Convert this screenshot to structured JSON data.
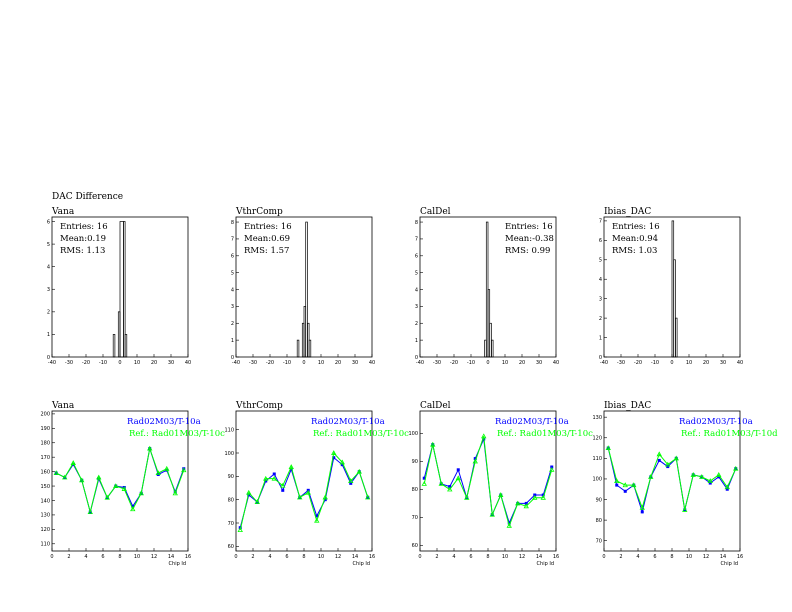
{
  "page_title": "DAC Difference",
  "colors": {
    "blue": "#0000ff",
    "green": "#00ff00",
    "black": "#000000"
  },
  "chart_data": [
    {
      "type": "histogram",
      "title": "Vana",
      "xlim": [
        -40,
        40
      ],
      "ylim": [
        0,
        6.2
      ],
      "x_ticks": [
        -40,
        -30,
        -20,
        -10,
        0,
        10,
        20,
        30,
        40
      ],
      "y_ticks": [
        0,
        1,
        2,
        3,
        4,
        5,
        6
      ],
      "stats": {
        "entries": "Entries:  16",
        "mean": "Mean:0.19",
        "rms": "RMS: 1.13"
      },
      "bins": [
        [
          -4,
          -3,
          1
        ],
        [
          -1,
          0,
          2
        ],
        [
          0,
          2,
          6
        ],
        [
          2,
          3,
          6
        ],
        [
          3,
          4,
          1
        ]
      ]
    },
    {
      "type": "histogram",
      "title": "VthrComp",
      "xlim": [
        -40,
        40
      ],
      "ylim": [
        0,
        8.3
      ],
      "x_ticks": [
        -40,
        -30,
        -20,
        -10,
        0,
        10,
        20,
        30,
        40
      ],
      "y_ticks": [
        0,
        1,
        2,
        3,
        4,
        5,
        6,
        7,
        8
      ],
      "stats": {
        "entries": "Entries:  16",
        "mean": "Mean:0.69",
        "rms": "RMS: 1.57"
      },
      "bins": [
        [
          -4,
          -3,
          1
        ],
        [
          -1,
          0,
          2
        ],
        [
          0,
          1,
          3
        ],
        [
          1,
          2,
          8
        ],
        [
          2,
          3,
          2
        ],
        [
          3,
          4,
          1
        ]
      ]
    },
    {
      "type": "histogram",
      "title": "CalDel",
      "xlim": [
        -40,
        40
      ],
      "ylim": [
        0,
        8.3
      ],
      "x_ticks": [
        -40,
        -30,
        -20,
        -10,
        0,
        10,
        20,
        30,
        40
      ],
      "y_ticks": [
        0,
        1,
        2,
        3,
        4,
        5,
        6,
        7,
        8
      ],
      "stats": {
        "entries": "Entries:  16",
        "mean": "Mean:-0.38",
        "rms": "RMS: 0.99"
      },
      "bins": [
        [
          -2,
          -1,
          1
        ],
        [
          -1,
          0,
          8
        ],
        [
          0,
          1,
          4
        ],
        [
          1,
          2,
          2
        ],
        [
          2,
          3,
          1
        ]
      ]
    },
    {
      "type": "histogram",
      "title": "Ibias_DAC",
      "xlim": [
        -40,
        40
      ],
      "ylim": [
        0,
        7.2
      ],
      "x_ticks": [
        -40,
        -30,
        -20,
        -10,
        0,
        10,
        20,
        30,
        40
      ],
      "y_ticks": [
        0,
        1,
        2,
        3,
        4,
        5,
        6,
        7
      ],
      "stats": {
        "entries": "Entries:  16",
        "mean": "Mean:0.94",
        "rms": "RMS: 1.03"
      },
      "bins": [
        [
          0,
          1,
          7
        ],
        [
          1,
          2,
          5
        ],
        [
          2,
          3,
          2
        ]
      ]
    },
    {
      "type": "line",
      "title": "Vana",
      "xlabel": "Chip Id",
      "xlim": [
        0,
        16
      ],
      "ylim": [
        105,
        202
      ],
      "x_ticks": [
        0,
        2,
        4,
        6,
        8,
        10,
        12,
        14,
        16
      ],
      "y_ticks": [
        110,
        120,
        130,
        140,
        150,
        160,
        170,
        180,
        190,
        200
      ],
      "x": [
        0,
        1,
        2,
        3,
        4,
        5,
        6,
        7,
        8,
        9,
        10,
        11,
        12,
        13,
        14,
        15
      ],
      "series": [
        {
          "name": "Rad02M03/T-10a",
          "color": "#0000ff",
          "values": [
            159,
            156,
            165,
            154,
            132,
            155,
            142,
            150,
            149,
            136,
            145,
            176,
            158,
            161,
            146,
            162
          ]
        },
        {
          "name": "Ref.: Rad01M03/T-10c",
          "color": "#00ff00",
          "values": [
            159,
            156,
            166,
            154,
            132,
            156,
            142,
            150,
            148,
            134,
            145,
            176,
            159,
            162,
            145,
            161
          ]
        }
      ]
    },
    {
      "type": "line",
      "title": "VthrComp",
      "xlabel": "Chip Id",
      "xlim": [
        0,
        16
      ],
      "ylim": [
        58,
        118
      ],
      "x_ticks": [
        0,
        2,
        4,
        6,
        8,
        10,
        12,
        14,
        16
      ],
      "y_ticks": [
        60,
        70,
        80,
        90,
        100,
        110
      ],
      "x": [
        0,
        1,
        2,
        3,
        4,
        5,
        6,
        7,
        8,
        9,
        10,
        11,
        12,
        13,
        14,
        15
      ],
      "series": [
        {
          "name": "Rad02M03/T-10a",
          "color": "#0000ff",
          "values": [
            68,
            82,
            79,
            88,
            91,
            84,
            93,
            81,
            84,
            73,
            80,
            98,
            95,
            87,
            92,
            81
          ]
        },
        {
          "name": "Ref.: Rad01M03/T-10c",
          "color": "#00ff00",
          "values": [
            67,
            83,
            79,
            89,
            89,
            86,
            94,
            81,
            83,
            71,
            81,
            100,
            96,
            88,
            92,
            81
          ]
        }
      ]
    },
    {
      "type": "line",
      "title": "CalDel",
      "xlabel": "Chip Id",
      "xlim": [
        0,
        16
      ],
      "ylim": [
        58,
        108
      ],
      "x_ticks": [
        0,
        2,
        4,
        6,
        8,
        10,
        12,
        14,
        16
      ],
      "y_ticks": [
        60,
        70,
        80,
        90,
        100
      ],
      "x": [
        0,
        1,
        2,
        3,
        4,
        5,
        6,
        7,
        8,
        9,
        10,
        11,
        12,
        13,
        14,
        15
      ],
      "series": [
        {
          "name": "Rad02M03/T-10a",
          "color": "#0000ff",
          "values": [
            84,
            96,
            82,
            81,
            87,
            77,
            91,
            98,
            71,
            78,
            68,
            75,
            75,
            78,
            78,
            88
          ]
        },
        {
          "name": "Ref.: Rad01M03/T-10c",
          "color": "#00ff00",
          "values": [
            82,
            96,
            82,
            80,
            84,
            77,
            90,
            99,
            71,
            78,
            67,
            75,
            74,
            77,
            77,
            87
          ]
        }
      ]
    },
    {
      "type": "line",
      "title": "Ibias_DAC",
      "xlabel": "Chip Id",
      "xlim": [
        0,
        16
      ],
      "ylim": [
        65,
        133
      ],
      "x_ticks": [
        0,
        2,
        4,
        6,
        8,
        10,
        12,
        14,
        16
      ],
      "y_ticks": [
        70,
        80,
        90,
        100,
        110,
        120,
        130
      ],
      "x": [
        0,
        1,
        2,
        3,
        4,
        5,
        6,
        7,
        8,
        9,
        10,
        11,
        12,
        13,
        14,
        15
      ],
      "series": [
        {
          "name": "Rad02M03/T-10a",
          "color": "#0000ff",
          "values": [
            115,
            97,
            94,
            97,
            84,
            101,
            109,
            106,
            110,
            85,
            102,
            101,
            98,
            101,
            95,
            105
          ]
        },
        {
          "name": "Ref.: Rad01M03/T-10d",
          "color": "#00ff00",
          "values": [
            115,
            99,
            97,
            97,
            86,
            101,
            112,
            107,
            110,
            85,
            102,
            101,
            99,
            102,
            96,
            105
          ]
        }
      ]
    }
  ]
}
